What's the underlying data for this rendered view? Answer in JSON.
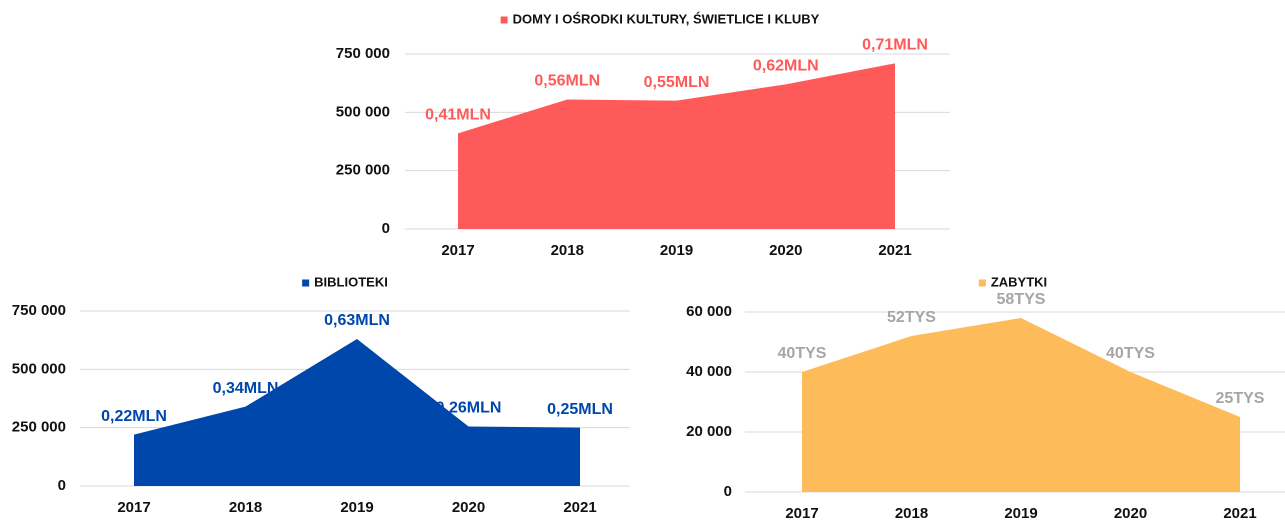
{
  "chart_data": [
    {
      "type": "area",
      "categories": [
        "2017",
        "2018",
        "2019",
        "2020",
        "2021"
      ],
      "series": [
        {
          "name": "DOMY I OŚRODKI KULTURY, ŚWIETLICE I KLUBY",
          "color": "#ff5a5a",
          "values": [
            410000,
            555000,
            550000,
            620000,
            710000
          ],
          "value_labels": [
            "0,41MLN",
            "0,56MLN",
            "0,55MLN",
            "0,62MLN",
            "0,71MLN"
          ]
        }
      ],
      "label_color": "#ff5a5a",
      "ylim": [
        0,
        750000
      ],
      "yticks": [
        0,
        {
          "value": 250000,
          "label": "250 000"
        },
        {
          "value": 500000,
          "label": "500 000"
        },
        {
          "value": 750000,
          "label": "750 000"
        }
      ],
      "grid": true
    },
    {
      "type": "area",
      "categories": [
        "2017",
        "2018",
        "2019",
        "2020",
        "2021"
      ],
      "series": [
        {
          "name": "BIBLIOTEKI",
          "color": "#0047ab",
          "values": [
            220000,
            340000,
            630000,
            255000,
            250000
          ],
          "value_labels": [
            "0,22MLN",
            "0,34MLN",
            "0,63MLN",
            "0,26MLN",
            "0,25MLN"
          ]
        }
      ],
      "label_color": "#0047ab",
      "ylim": [
        0,
        750000
      ],
      "yticks": [
        0,
        {
          "value": 250000,
          "label": "250 000"
        },
        {
          "value": 500000,
          "label": "500 000"
        },
        {
          "value": 750000,
          "label": "750 000"
        }
      ],
      "grid": true
    },
    {
      "type": "area",
      "categories": [
        "2017",
        "2018",
        "2019",
        "2020",
        "2021"
      ],
      "series": [
        {
          "name": "ZABYTKI",
          "color": "#fdbb5a",
          "values": [
            40000,
            52000,
            58000,
            40000,
            25000
          ],
          "value_labels": [
            "40TYS",
            "52TYS",
            "58TYS",
            "40TYS",
            "25TYS"
          ]
        }
      ],
      "label_color": "#a6a6a6",
      "ylim": [
        0,
        60000
      ],
      "yticks": [
        0,
        {
          "value": 20000,
          "label": "20 000"
        },
        {
          "value": 40000,
          "label": "40 000"
        },
        {
          "value": 60000,
          "label": "60 000"
        }
      ],
      "grid": true
    }
  ]
}
